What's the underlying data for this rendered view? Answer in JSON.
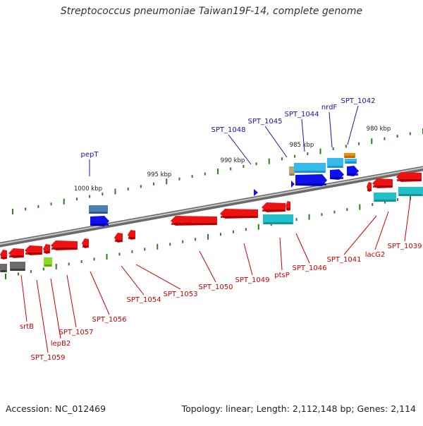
{
  "title": "Streptococcus pneumoniae Taiwan19F-14, complete genome",
  "footer": {
    "accession": "Accession: NC_012469",
    "topology": "Topology: linear; Length: 2,112,148 bp; Genes: 2,114"
  },
  "colors": {
    "forward_label": "#1515b0",
    "reverse_label": "#cc0000",
    "backbone": "#888888",
    "tick": "#2e7d1e",
    "scale_text": "#222222",
    "red_gene": "#ee1111",
    "blue_gene": "#1010ee",
    "light_blue_gene": "#33bbee",
    "steel_blue_gene": "#4a7fb8",
    "teal_gene": "#22c0c8",
    "gray_gene": "#6b6b6b",
    "orange_gene": "#f08a00",
    "tan_gene": "#b5a77a",
    "lime_gene": "#88dd22"
  },
  "scale_labels": [
    "1000 kbp",
    "995 kbp",
    "990 kbp",
    "985 kbp",
    "980 kbp"
  ],
  "forward_gene_labels": [
    "pepT",
    "SPT_1048",
    "SPT_1045",
    "SPT_1044",
    "nrdF",
    "SPT_1042"
  ],
  "reverse_gene_labels": [
    "srtB",
    "SPT_1059",
    "lepB2",
    "SPT_1057",
    "SPT_1056",
    "SPT_1054",
    "SPT_1053",
    "SPT_1050",
    "SPT_1049",
    "ptsP",
    "SPT_1046",
    "SPT_1041",
    "lacG2",
    "SPT_1039"
  ]
}
